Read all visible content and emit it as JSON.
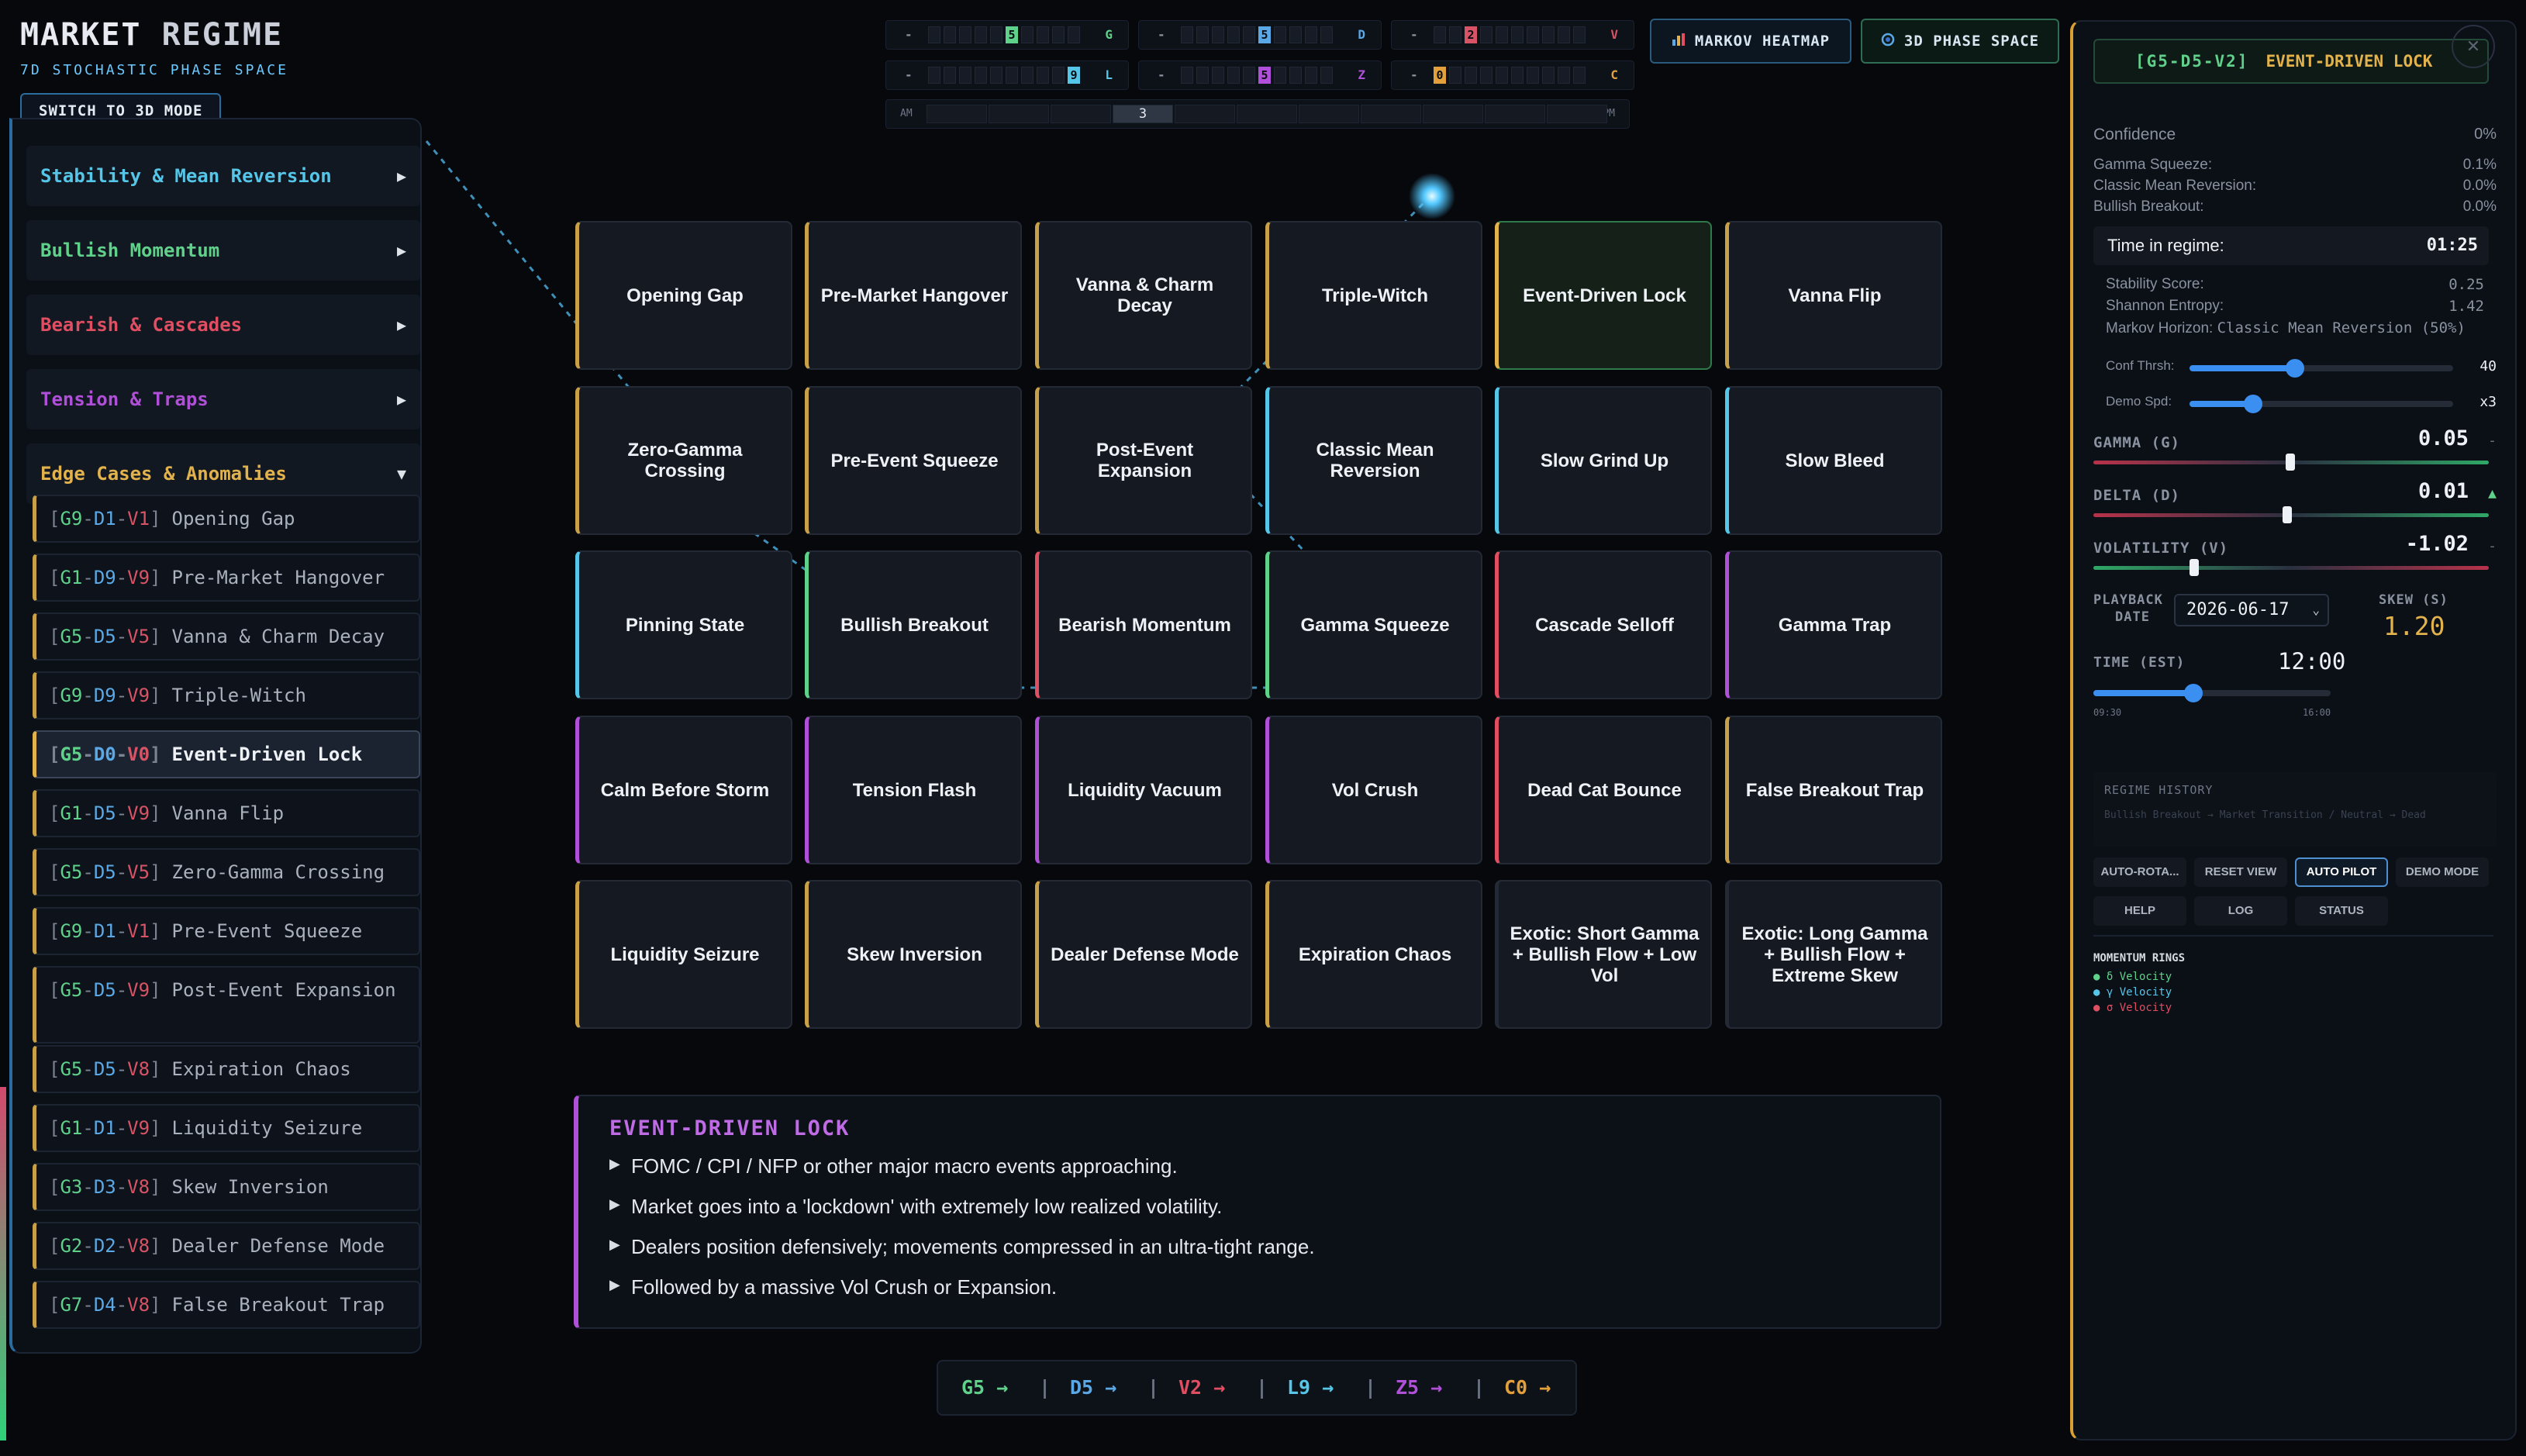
{
  "header": {
    "title_a": "MARKET",
    "title_b": "REGIME",
    "subtitle": "7D STOCHASTIC PHASE SPACE",
    "switch_label": "SWITCH TO 3D MODE"
  },
  "sidebar": {
    "categories": [
      {
        "label": "Stability & Mean Reversion",
        "color": "#56c6e8",
        "arrow": "▶"
      },
      {
        "label": "Bullish Momentum",
        "color": "#5fd18a",
        "arrow": "▶"
      },
      {
        "label": "Bearish & Cascades",
        "color": "#e04e62",
        "arrow": "▶"
      },
      {
        "label": "Tension & Traps",
        "color": "#b050d8",
        "arrow": "▶"
      },
      {
        "label": "Edge Cases & Anomalies",
        "color": "#e2b24c",
        "arrow": "▼"
      }
    ],
    "items": [
      {
        "g": "G9",
        "d": "D1",
        "v": "V1",
        "name": "Opening Gap"
      },
      {
        "g": "G1",
        "d": "D9",
        "v": "V9",
        "name": "Pre-Market Hangover"
      },
      {
        "g": "G5",
        "d": "D5",
        "v": "V5",
        "name": "Vanna & Charm Decay"
      },
      {
        "g": "G9",
        "d": "D9",
        "v": "V9",
        "name": "Triple-Witch"
      },
      {
        "g": "G5",
        "d": "D0",
        "v": "V0",
        "name": "Event-Driven Lock"
      },
      {
        "g": "G1",
        "d": "D5",
        "v": "V9",
        "name": "Vanna Flip"
      },
      {
        "g": "G5",
        "d": "D5",
        "v": "V5",
        "name": "Zero-Gamma Crossing"
      },
      {
        "g": "G9",
        "d": "D1",
        "v": "V1",
        "name": "Pre-Event Squeeze"
      },
      {
        "g": "G5",
        "d": "D5",
        "v": "V9",
        "name": "Post-Event Expansion"
      },
      {
        "g": "G5",
        "d": "D5",
        "v": "V8",
        "name": "Expiration Chaos"
      },
      {
        "g": "G1",
        "d": "D1",
        "v": "V9",
        "name": "Liquidity Seizure"
      },
      {
        "g": "G3",
        "d": "D3",
        "v": "V8",
        "name": "Skew Inversion"
      },
      {
        "g": "G2",
        "d": "D2",
        "v": "V8",
        "name": "Dealer Defense Mode"
      },
      {
        "g": "G7",
        "d": "D4",
        "v": "V8",
        "name": "False Breakout Trap"
      }
    ]
  },
  "gauges": [
    {
      "left": "-",
      "value": "5",
      "letter": "G",
      "color": "#5fd18a"
    },
    {
      "left": "-",
      "value": "5",
      "letter": "D",
      "color": "#5aa9e6"
    },
    {
      "left": "-",
      "value": "2",
      "letter": "V",
      "color": "#d65466"
    },
    {
      "left": "-",
      "value": "9",
      "letter": "L",
      "color": "#56c6e8"
    },
    {
      "left": "-",
      "value": "5",
      "letter": "Z",
      "color": "#b050d8"
    },
    {
      "left": "-",
      "value": "0",
      "letter": "C",
      "color": "#e2a03c"
    }
  ],
  "timeline": {
    "start": "AM",
    "end": "PM",
    "current": "3"
  },
  "topbar": {
    "heatmap": "MARKOV HEATMAP",
    "phase": "3D PHASE SPACE"
  },
  "grid": [
    {
      "label": "Opening Gap",
      "accent": "#c9a04a"
    },
    {
      "label": "Pre-Market Hangover",
      "accent": "#c9a04a"
    },
    {
      "label": "Vanna & Charm Decay",
      "accent": "#c9a04a"
    },
    {
      "label": "Triple-Witch",
      "accent": "#c9a04a"
    },
    {
      "label": "Event-Driven Lock",
      "accent": "#e2b24c"
    },
    {
      "label": "Vanna Flip",
      "accent": "#c9a04a"
    },
    {
      "label": "Zero-Gamma Crossing",
      "accent": "#c9a04a"
    },
    {
      "label": "Pre-Event Squeeze",
      "accent": "#c9a04a"
    },
    {
      "label": "Post-Event Expansion",
      "accent": "#c9a04a"
    },
    {
      "label": "Classic Mean Reversion",
      "accent": "#56c6e8"
    },
    {
      "label": "Slow Grind Up",
      "accent": "#56c6e8"
    },
    {
      "label": "Slow Bleed",
      "accent": "#56c6e8"
    },
    {
      "label": "Pinning State",
      "accent": "#56c6e8"
    },
    {
      "label": "Bullish Breakout",
      "accent": "#5fd18a"
    },
    {
      "label": "Bearish Momentum",
      "accent": "#e04e62"
    },
    {
      "label": "Gamma Squeeze",
      "accent": "#5fd18a"
    },
    {
      "label": "Cascade Selloff",
      "accent": "#e04e62"
    },
    {
      "label": "Gamma Trap",
      "accent": "#b050d8"
    },
    {
      "label": "Calm Before Storm",
      "accent": "#b050d8"
    },
    {
      "label": "Tension Flash",
      "accent": "#b050d8"
    },
    {
      "label": "Liquidity Vacuum",
      "accent": "#b050d8"
    },
    {
      "label": "Vol Crush",
      "accent": "#b050d8"
    },
    {
      "label": "Dead Cat Bounce",
      "accent": "#e04e62"
    },
    {
      "label": "False Breakout Trap",
      "accent": "#c9a04a"
    },
    {
      "label": "Liquidity Seizure",
      "accent": "#c9a04a"
    },
    {
      "label": "Skew Inversion",
      "accent": "#c9a04a"
    },
    {
      "label": "Dealer Defense Mode",
      "accent": "#c9a04a"
    },
    {
      "label": "Expiration Chaos",
      "accent": "#c9a04a"
    },
    {
      "label": "Exotic: Short Gamma + Bullish Flow + Low Vol",
      "accent": "#232a36"
    },
    {
      "label": "Exotic: Long Gamma + Bullish Flow + Extreme Skew",
      "accent": "#232a36"
    }
  ],
  "description": {
    "title": "EVENT-DRIVEN LOCK",
    "bullets": [
      "FOMC / CPI / NFP or other major macro events approaching.",
      "Market goes into a 'lockdown' with extremely low realized volatility.",
      "Dealers position defensively; movements compressed in an ultra-tight range.",
      "Followed by a massive Vol Crush or Expansion."
    ]
  },
  "statebar": [
    {
      "label": "G5 →",
      "color": "#5fd18a"
    },
    {
      "label": "D5 →",
      "color": "#5aa9e6"
    },
    {
      "label": "V2 →",
      "color": "#e04e62"
    },
    {
      "label": "L9 →",
      "color": "#56c6e8"
    },
    {
      "label": "Z5 →",
      "color": "#b050d8"
    },
    {
      "label": "C0 →",
      "color": "#e2a03c"
    }
  ],
  "panel": {
    "code": "[G5-D5-V2]",
    "name": "EVENT-DRIVEN LOCK",
    "confidence_label": "Confidence",
    "confidence_value": "0%",
    "probs": [
      {
        "label": "Gamma Squeeze:",
        "value": "0.1%"
      },
      {
        "label": "Classic Mean Reversion:",
        "value": "0.0%"
      },
      {
        "label": "Bullish Breakout:",
        "value": "0.0%"
      }
    ],
    "time_label": "Time in regime:",
    "time_value": "01:25",
    "stability_label": "Stability Score:",
    "stability_value": "0.25",
    "entropy_label": "Shannon Entropy:",
    "entropy_value": "1.42",
    "horizon_label": "Markov Horizon:",
    "horizon_value": "Classic Mean Reversion (50%)",
    "conf_thrsh_label": "Conf Thrsh:",
    "conf_thrsh_value": "40",
    "conf_thrsh_level": 0.4,
    "demo_spd_label": "Demo Spd:",
    "demo_spd_value": "x3",
    "demo_spd_level": 0.24,
    "gamma_label": "GAMMA (G)",
    "gamma_value": "0.05",
    "gamma_mark": "-",
    "delta_label": "DELTA (D)",
    "delta_value": "0.01",
    "delta_mark": "▲",
    "vol_label": "VOLATILITY (V)",
    "vol_value": "-1.02",
    "vol_mark": "-",
    "playback_label_1": "PLAYBACK",
    "playback_label_2": "DATE",
    "playback_date": "2026-06-17",
    "skew_label": "SKEW (S)",
    "skew_value": "1.20",
    "time_est_label": "TIME (EST)",
    "time_est_value": "12:00",
    "time_est_level": 0.42,
    "time_start": "09:30",
    "time_end": "16:00",
    "history_label": "REGIME HISTORY",
    "history_text": "Bullish Breakout → Market Transition / Neutral → Dead",
    "buttons": [
      "AUTO-ROTA...",
      "RESET VIEW",
      "AUTO PILOT",
      "DEMO MODE",
      "HELP",
      "LOG",
      "STATUS"
    ],
    "rings_title": "MOMENTUM RINGS",
    "rings": [
      {
        "label": "● δ Velocity",
        "color": "#5fd18a"
      },
      {
        "label": "● γ Velocity",
        "color": "#56c6e8"
      },
      {
        "label": "● σ Velocity",
        "color": "#e04e62"
      }
    ]
  },
  "icons": {
    "heatmap": "bar-chart-icon",
    "phase": "swirl-icon",
    "close": "close-icon"
  }
}
